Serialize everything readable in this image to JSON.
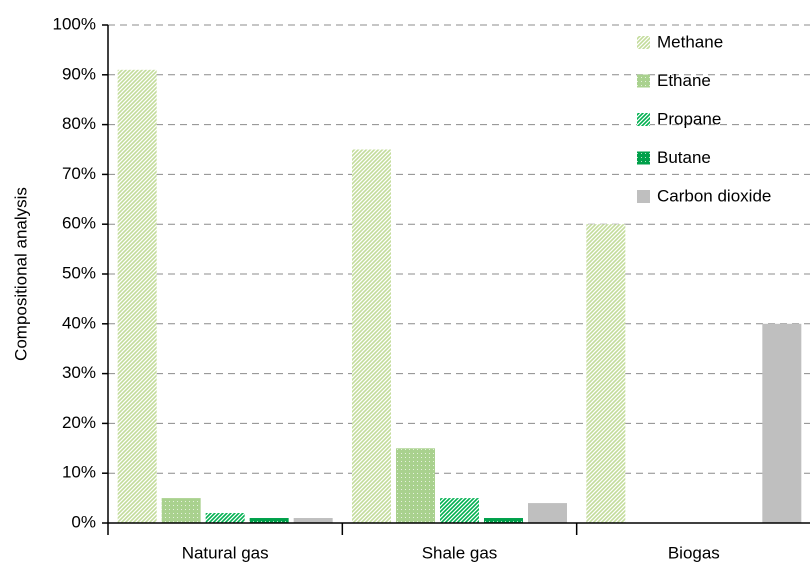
{
  "chart_data": {
    "type": "bar",
    "y_label": "Compositional analysis",
    "categories": [
      "Natural gas",
      "Shale gas",
      "Biogas"
    ],
    "series": [
      {
        "name": "Methane",
        "color": "#c3dc9b",
        "pattern": "diagonal",
        "values": [
          91,
          75,
          60
        ]
      },
      {
        "name": "Ethane",
        "color": "#a9d18e",
        "pattern": "dots",
        "values": [
          5,
          15,
          0
        ]
      },
      {
        "name": "Propane",
        "color": "#00b050",
        "pattern": "diagonal",
        "values": [
          2,
          5,
          0
        ]
      },
      {
        "name": "Butane",
        "color": "#00a04a",
        "pattern": "dots",
        "values": [
          1,
          1,
          0
        ]
      },
      {
        "name": "Carbon dioxide",
        "color": "#bfbfbf",
        "pattern": "solid",
        "values": [
          1,
          4,
          40
        ]
      }
    ],
    "ylim": [
      0,
      100
    ],
    "yticks": [
      {
        "value": 0,
        "label": "0%"
      },
      {
        "value": 10,
        "label": "10%"
      },
      {
        "value": 20,
        "label": "20%"
      },
      {
        "value": 30,
        "label": "30%"
      },
      {
        "value": 40,
        "label": "40%"
      },
      {
        "value": 50,
        "label": "50%"
      },
      {
        "value": 60,
        "label": "60%"
      },
      {
        "value": 70,
        "label": "70%"
      },
      {
        "value": 80,
        "label": "80%"
      },
      {
        "value": 90,
        "label": "90%"
      },
      {
        "value": 100,
        "label": "100%"
      }
    ],
    "grid": true,
    "legend": "top-right"
  }
}
